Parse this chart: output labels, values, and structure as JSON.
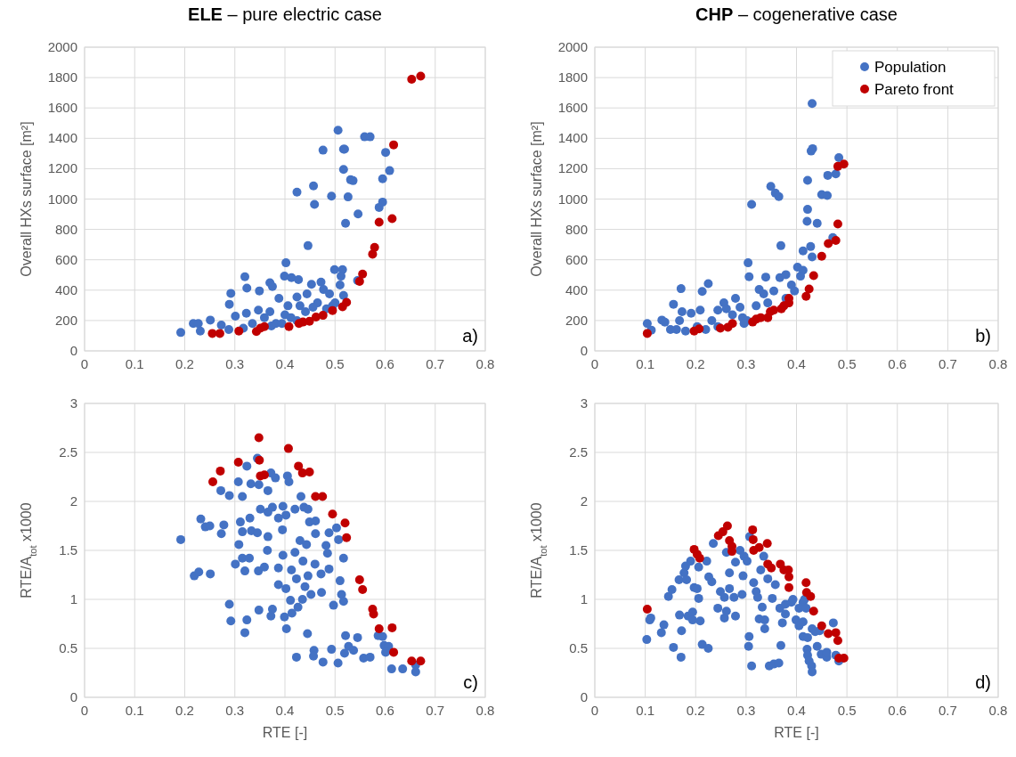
{
  "chart_data": [
    {
      "type": "scatter",
      "title": "ELE – pure electric case",
      "ylabel": "Overall HXs surface [m²]",
      "xlim": [
        0,
        0.8
      ],
      "ylim": [
        0,
        2000
      ],
      "xticks": [
        0,
        0.1,
        0.2,
        0.3,
        0.4,
        0.5,
        0.6,
        0.7,
        0.8
      ],
      "yticks": [
        0,
        200,
        400,
        600,
        800,
        1000,
        1200,
        1400,
        1600,
        1800,
        2000
      ],
      "grid": true,
      "marker": "circle",
      "annotations": [
        "a)"
      ],
      "series": [
        {
          "color": "#4472c4",
          "x": [
            0.192,
            0.217,
            0.227,
            0.231,
            0.251,
            0.273,
            0.288,
            0.289,
            0.292,
            0.301,
            0.32,
            0.324,
            0.323,
            0.349,
            0.347,
            0.37,
            0.375,
            0.399,
            0.402,
            0.413,
            0.427,
            0.424,
            0.388,
            0.406,
            0.4,
            0.382,
            0.43,
            0.444,
            0.453,
            0.472,
            0.477,
            0.489,
            0.499,
            0.515,
            0.512,
            0.51,
            0.517,
            0.5,
            0.465,
            0.441,
            0.359,
            0.335,
            0.317,
            0.37,
            0.412,
            0.424,
            0.394,
            0.373,
            0.456,
            0.483,
            0.495,
            0.446,
            0.424,
            0.457,
            0.459,
            0.493,
            0.526,
            0.521,
            0.546,
            0.506,
            0.476,
            0.517,
            0.519,
            0.517,
            0.531,
            0.536,
            0.559,
            0.57,
            0.601,
            0.609,
            0.595,
            0.588,
            0.595,
            0.545
          ],
          "values": [
            121,
            180,
            180,
            131,
            203,
            170,
            141,
            307,
            379,
            229,
            488,
            414,
            248,
            395,
            268,
            449,
            424,
            492,
            580,
            482,
            469,
            355,
            346,
            297,
            238,
            180,
            297,
            375,
            438,
            453,
            404,
            375,
            535,
            535,
            492,
            434,
            365,
            316,
            316,
            258,
            219,
            180,
            150,
            258,
            219,
            199,
            180,
            164,
            287,
            277,
            297,
            693,
            1045,
            1086,
            965,
            1019,
            1014,
            840,
            902,
            1453,
            1322,
            1328,
            1328,
            1195,
            1127,
            1121,
            1410,
            1410,
            1307,
            1187,
            1133,
            945,
            980,
            463
          ]
        },
        {
          "color": "#c00000",
          "x": [
            0.255,
            0.27,
            0.308,
            0.343,
            0.351,
            0.359,
            0.408,
            0.428,
            0.436,
            0.449,
            0.462,
            0.476,
            0.495,
            0.515,
            0.523,
            0.549,
            0.555,
            0.575,
            0.579,
            0.588,
            0.614,
            0.617,
            0.653,
            0.671
          ],
          "values": [
            115,
            115,
            131,
            128,
            150,
            160,
            160,
            180,
            190,
            195,
            223,
            234,
            266,
            290,
            320,
            457,
            506,
            637,
            682,
            848,
            871,
            1357,
            1789,
            1809
          ]
        }
      ]
    },
    {
      "type": "scatter",
      "title": "CHP – cogenerative case",
      "ylabel": "Overall HXs surface [m²]",
      "xlim": [
        0,
        0.8
      ],
      "ylim": [
        0,
        2000
      ],
      "xticks": [
        0,
        0.1,
        0.2,
        0.3,
        0.4,
        0.5,
        0.6,
        0.7,
        0.8
      ],
      "yticks": [
        0,
        200,
        400,
        600,
        800,
        1000,
        1200,
        1400,
        1600,
        1800,
        2000
      ],
      "grid": true,
      "marker": "circle",
      "legend": "top right",
      "annotations": [
        "b)"
      ],
      "series": [
        {
          "name": "Population",
          "color": "#4472c4",
          "x": [
            0.104,
            0.112,
            0.133,
            0.139,
            0.15,
            0.156,
            0.168,
            0.171,
            0.173,
            0.18,
            0.191,
            0.209,
            0.213,
            0.225,
            0.22,
            0.232,
            0.244,
            0.256,
            0.261,
            0.279,
            0.288,
            0.293,
            0.244,
            0.273,
            0.304,
            0.306,
            0.311,
            0.32,
            0.326,
            0.335,
            0.339,
            0.349,
            0.358,
            0.365,
            0.369,
            0.343,
            0.355,
            0.367,
            0.379,
            0.39,
            0.402,
            0.413,
            0.413,
            0.422,
            0.422,
            0.421,
            0.441,
            0.428,
            0.431,
            0.429,
            0.432,
            0.431,
            0.45,
            0.461,
            0.462,
            0.478,
            0.484,
            0.472,
            0.379,
            0.396,
            0.302,
            0.296,
            0.203,
            0.162,
            0.408
          ],
          "values": [
            180,
            137,
            203,
            189,
            141,
            307,
            199,
            410,
            258,
            131,
            248,
            268,
            391,
            443,
            141,
            199,
            268,
            316,
            277,
            346,
            287,
            219,
            160,
            238,
            580,
            488,
            965,
            297,
            404,
            375,
            486,
            1084,
            1039,
            1016,
            693,
            316,
            394,
            482,
            502,
            434,
            551,
            531,
            658,
            1123,
            932,
            853,
            840,
            687,
            619,
            1316,
            1332,
            1629,
            1029,
            1023,
            1156,
            1166,
            1273,
            746,
            346,
            394,
            199,
            180,
            160,
            141,
            492
          ]
        },
        {
          "name": "Pareto front",
          "color": "#c00000",
          "x": [
            0.104,
            0.197,
            0.207,
            0.249,
            0.264,
            0.273,
            0.313,
            0.32,
            0.329,
            0.343,
            0.348,
            0.355,
            0.37,
            0.375,
            0.385,
            0.385,
            0.419,
            0.425,
            0.434,
            0.45,
            0.463,
            0.478,
            0.482,
            0.482,
            0.494
          ],
          "values": [
            115,
            131,
            145,
            150,
            156,
            180,
            190,
            209,
            219,
            219,
            258,
            268,
            277,
            297,
            316,
            346,
            359,
            408,
            496,
            623,
            707,
            727,
            836,
            1215,
            1230
          ]
        }
      ]
    },
    {
      "type": "scatter",
      "xlabel": "RTE [-]",
      "ylabel": "RTE/A$_{tot}$  x1000",
      "xlim": [
        0,
        0.8
      ],
      "ylim": [
        0,
        3
      ],
      "xticks": [
        0,
        0.1,
        0.2,
        0.3,
        0.4,
        0.5,
        0.6,
        0.7,
        0.8
      ],
      "yticks": [
        0,
        0.5,
        1,
        1.5,
        2,
        2.5,
        3
      ],
      "grid": true,
      "marker": "circle",
      "annotations": [
        "c)"
      ],
      "series": [
        {
          "color": "#4472c4",
          "x": [
            0.192,
            0.219,
            0.228,
            0.251,
            0.232,
            0.241,
            0.25,
            0.273,
            0.278,
            0.272,
            0.289,
            0.307,
            0.315,
            0.324,
            0.345,
            0.332,
            0.348,
            0.366,
            0.372,
            0.381,
            0.405,
            0.408,
            0.311,
            0.315,
            0.33,
            0.333,
            0.345,
            0.308,
            0.315,
            0.329,
            0.301,
            0.32,
            0.347,
            0.359,
            0.351,
            0.366,
            0.375,
            0.396,
            0.402,
            0.387,
            0.395,
            0.366,
            0.365,
            0.396,
            0.42,
            0.436,
            0.387,
            0.413,
            0.423,
            0.387,
            0.402,
            0.44,
            0.446,
            0.46,
            0.472,
            0.488,
            0.432,
            0.438,
            0.446,
            0.42,
            0.449,
            0.461,
            0.461,
            0.488,
            0.503,
            0.507,
            0.43,
            0.443,
            0.482,
            0.485,
            0.517,
            0.51,
            0.513,
            0.517,
            0.497,
            0.473,
            0.452,
            0.435,
            0.426,
            0.411,
            0.414,
            0.399,
            0.375,
            0.372,
            0.348,
            0.324,
            0.289,
            0.292,
            0.32,
            0.403,
            0.445,
            0.423,
            0.458,
            0.457,
            0.476,
            0.493,
            0.506,
            0.519,
            0.521,
            0.527,
            0.537,
            0.545,
            0.557,
            0.57,
            0.586,
            0.595,
            0.598,
            0.607,
            0.601,
            0.613,
            0.635,
            0.661,
            0.661
          ],
          "values": [
            1.61,
            1.24,
            1.28,
            1.26,
            1.82,
            1.74,
            1.75,
            1.67,
            1.76,
            2.11,
            2.06,
            2.2,
            2.05,
            2.36,
            2.44,
            2.18,
            2.17,
            2.11,
            2.29,
            2.24,
            2.26,
            2.2,
            1.79,
            1.69,
            1.83,
            1.7,
            1.68,
            1.56,
            1.42,
            1.42,
            1.36,
            1.29,
            1.29,
            1.33,
            1.92,
            1.89,
            1.94,
            1.95,
            1.86,
            1.83,
            1.71,
            1.64,
            1.5,
            1.45,
            1.48,
            1.39,
            1.32,
            1.3,
            1.21,
            1.15,
            1.11,
            1.13,
            1.24,
            1.36,
            1.26,
            1.31,
            2.05,
            1.94,
            1.92,
            1.92,
            1.79,
            1.8,
            1.67,
            1.68,
            1.73,
            1.61,
            1.6,
            1.56,
            1.55,
            1.47,
            1.42,
            1.19,
            1.05,
            0.98,
            0.94,
            1.07,
            1.05,
            1.0,
            0.92,
            0.99,
            0.86,
            0.82,
            0.9,
            0.83,
            0.89,
            0.79,
            0.95,
            0.78,
            0.66,
            0.7,
            0.65,
            0.41,
            0.48,
            0.42,
            0.36,
            0.49,
            0.35,
            0.45,
            0.63,
            0.52,
            0.48,
            0.61,
            0.4,
            0.41,
            0.63,
            0.62,
            0.53,
            0.52,
            0.46,
            0.29,
            0.29,
            0.26,
            0.33
          ]
        },
        {
          "color": "#c00000",
          "x": [
            0.348,
            0.407,
            0.307,
            0.349,
            0.271,
            0.256,
            0.427,
            0.435,
            0.449,
            0.351,
            0.359,
            0.461,
            0.475,
            0.495,
            0.52,
            0.523,
            0.549,
            0.555,
            0.575,
            0.577,
            0.588,
            0.614,
            0.617,
            0.653,
            0.671
          ],
          "values": [
            2.65,
            2.54,
            2.4,
            2.42,
            2.31,
            2.2,
            2.36,
            2.29,
            2.3,
            2.26,
            2.27,
            2.05,
            2.05,
            1.87,
            1.78,
            1.63,
            1.2,
            1.1,
            0.9,
            0.85,
            0.7,
            0.71,
            0.46,
            0.37,
            0.37
          ]
        }
      ]
    },
    {
      "type": "scatter",
      "xlabel": "RTE [-]",
      "ylabel": "RTE/A$_{tot}$  x1000",
      "xlim": [
        0,
        0.8
      ],
      "ylim": [
        0,
        3
      ],
      "xticks": [
        0,
        0.1,
        0.2,
        0.3,
        0.4,
        0.5,
        0.6,
        0.7,
        0.8
      ],
      "yticks": [
        0,
        0.5,
        1,
        1.5,
        2,
        2.5,
        3
      ],
      "grid": true,
      "marker": "circle",
      "annotations": [
        "d)"
      ],
      "series": [
        {
          "color": "#4472c4",
          "x": [
            0.103,
            0.109,
            0.111,
            0.132,
            0.137,
            0.146,
            0.153,
            0.156,
            0.171,
            0.172,
            0.168,
            0.167,
            0.177,
            0.18,
            0.19,
            0.182,
            0.185,
            0.194,
            0.194,
            0.197,
            0.203,
            0.206,
            0.206,
            0.209,
            0.213,
            0.225,
            0.222,
            0.226,
            0.232,
            0.235,
            0.244,
            0.249,
            0.257,
            0.257,
            0.261,
            0.261,
            0.267,
            0.267,
            0.276,
            0.279,
            0.288,
            0.292,
            0.294,
            0.279,
            0.296,
            0.302,
            0.306,
            0.305,
            0.311,
            0.307,
            0.315,
            0.32,
            0.323,
            0.326,
            0.329,
            0.332,
            0.337,
            0.337,
            0.335,
            0.346,
            0.355,
            0.365,
            0.369,
            0.343,
            0.352,
            0.358,
            0.367,
            0.372,
            0.378,
            0.378,
            0.39,
            0.393,
            0.399,
            0.405,
            0.413,
            0.405,
            0.413,
            0.419,
            0.416,
            0.413,
            0.422,
            0.421,
            0.422,
            0.425,
            0.43,
            0.431,
            0.431,
            0.441,
            0.449,
            0.46,
            0.46,
            0.473,
            0.484,
            0.478,
            0.437,
            0.446
          ],
          "values": [
            0.59,
            0.79,
            0.81,
            0.66,
            0.74,
            1.03,
            1.1,
            0.51,
            0.41,
            0.68,
            0.84,
            1.2,
            1.27,
            1.34,
            1.39,
            1.2,
            0.83,
            0.87,
            0.79,
            1.12,
            1.11,
            1.33,
            1.01,
            0.78,
            0.54,
            0.5,
            1.39,
            1.23,
            1.18,
            1.57,
            0.91,
            1.08,
            1.02,
            0.81,
            0.88,
            1.48,
            1.27,
            1.11,
            1.02,
            0.83,
            1.5,
            1.05,
            1.24,
            1.38,
            1.44,
            1.39,
            0.62,
            0.52,
            0.32,
            1.64,
            1.17,
            1.08,
            1.02,
            0.8,
            1.3,
            0.92,
            0.7,
            0.79,
            1.44,
            0.32,
            0.34,
            0.35,
            0.53,
            1.21,
            1.01,
            1.15,
            0.91,
            0.76,
            0.85,
            0.95,
            0.97,
            1.0,
            0.79,
            0.73,
            0.77,
            0.91,
            0.97,
            0.91,
            1.0,
            0.62,
            0.61,
            0.49,
            0.43,
            0.37,
            0.32,
            0.26,
            0.7,
            0.52,
            0.44,
            0.41,
            0.46,
            0.76,
            0.37,
            0.43,
            0.67,
            0.68
          ]
        },
        {
          "color": "#c00000",
          "x": [
            0.104,
            0.197,
            0.203,
            0.208,
            0.245,
            0.254,
            0.263,
            0.267,
            0.272,
            0.272,
            0.313,
            0.314,
            0.315,
            0.326,
            0.342,
            0.343,
            0.35,
            0.368,
            0.375,
            0.384,
            0.385,
            0.385,
            0.419,
            0.42,
            0.428,
            0.434,
            0.45,
            0.463,
            0.478,
            0.482,
            0.484,
            0.494
          ],
          "values": [
            0.9,
            1.51,
            1.46,
            1.42,
            1.65,
            1.69,
            1.75,
            1.6,
            1.54,
            1.49,
            1.71,
            1.61,
            1.5,
            1.53,
            1.57,
            1.36,
            1.32,
            1.36,
            1.3,
            1.3,
            1.23,
            1.12,
            1.17,
            1.07,
            1.03,
            0.88,
            0.73,
            0.65,
            0.66,
            0.58,
            0.4,
            0.4
          ]
        }
      ]
    }
  ]
}
